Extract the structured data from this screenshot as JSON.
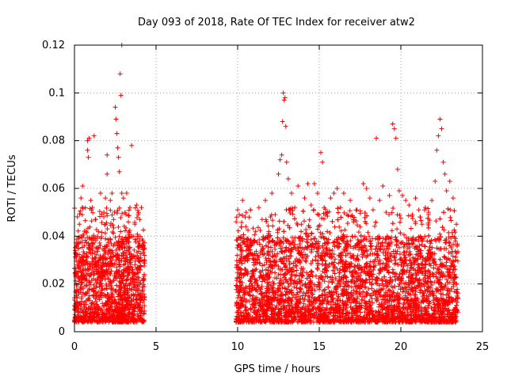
{
  "chart_data": {
    "type": "scatter",
    "title": "Day 093 of 2018, Rate Of TEC Index for receiver atw2",
    "xlabel": "GPS time / hours",
    "ylabel": "ROTI / TECUs",
    "xlim": [
      0,
      25
    ],
    "ylim": [
      0,
      0.12
    ],
    "x_ticks": [
      "0",
      "5",
      "10",
      "15",
      "20",
      "25"
    ],
    "y_ticks": [
      "0",
      "0.02",
      "0.04",
      "0.06",
      "0.08",
      "0.1",
      "0.12"
    ],
    "grid": true,
    "marker": "+",
    "series": [
      {
        "color": "#ff0000",
        "points": [
          [
            0.05,
            0.034
          ],
          [
            0.1,
            0.015
          ],
          [
            0.2,
            0.025
          ],
          [
            0.3,
            0.045
          ],
          [
            0.4,
            0.056
          ],
          [
            0.5,
            0.061
          ],
          [
            0.6,
            0.036
          ],
          [
            0.7,
            0.042
          ],
          [
            0.8,
            0.08
          ],
          [
            0.8,
            0.076
          ],
          [
            0.85,
            0.073
          ],
          [
            0.9,
            0.081
          ],
          [
            1.0,
            0.055
          ],
          [
            1.1,
            0.052
          ],
          [
            1.2,
            0.082
          ],
          [
            1.3,
            0.047
          ],
          [
            1.4,
            0.04
          ],
          [
            1.5,
            0.035
          ],
          [
            1.6,
            0.058
          ],
          [
            1.7,
            0.031
          ],
          [
            1.8,
            0.05
          ],
          [
            1.9,
            0.056
          ],
          [
            2.0,
            0.074
          ],
          [
            2.0,
            0.066
          ],
          [
            2.2,
            0.055
          ],
          [
            2.3,
            0.058
          ],
          [
            2.4,
            0.047
          ],
          [
            2.5,
            0.094
          ],
          [
            2.55,
            0.089
          ],
          [
            2.6,
            0.083
          ],
          [
            2.65,
            0.077
          ],
          [
            2.7,
            0.073
          ],
          [
            2.75,
            0.067
          ],
          [
            2.8,
            0.108
          ],
          [
            2.85,
            0.099
          ],
          [
            2.9,
            0.12
          ],
          [
            2.9,
            0.058
          ],
          [
            3.0,
            0.056
          ],
          [
            3.1,
            0.05
          ],
          [
            3.2,
            0.058
          ],
          [
            3.3,
            0.046
          ],
          [
            3.4,
            0.052
          ],
          [
            3.5,
            0.078
          ],
          [
            3.6,
            0.04
          ],
          [
            3.7,
            0.045
          ],
          [
            3.8,
            0.053
          ],
          [
            3.9,
            0.049
          ],
          [
            4.0,
            0.047
          ],
          [
            4.1,
            0.052
          ],
          [
            4.2,
            0.038
          ],
          [
            10.0,
            0.051
          ],
          [
            10.1,
            0.049
          ],
          [
            10.3,
            0.055
          ],
          [
            10.5,
            0.044
          ],
          [
            10.7,
            0.048
          ],
          [
            10.9,
            0.037
          ],
          [
            11.1,
            0.042
          ],
          [
            11.3,
            0.052
          ],
          [
            11.5,
            0.047
          ],
          [
            11.7,
            0.055
          ],
          [
            11.9,
            0.041
          ],
          [
            12.1,
            0.058
          ],
          [
            12.3,
            0.049
          ],
          [
            12.5,
            0.066
          ],
          [
            12.6,
            0.072
          ],
          [
            12.7,
            0.074
          ],
          [
            12.75,
            0.088
          ],
          [
            12.8,
            0.1
          ],
          [
            12.85,
            0.097
          ],
          [
            12.9,
            0.098
          ],
          [
            12.95,
            0.086
          ],
          [
            13.0,
            0.071
          ],
          [
            13.1,
            0.064
          ],
          [
            13.3,
            0.058
          ],
          [
            13.5,
            0.052
          ],
          [
            13.7,
            0.061
          ],
          [
            13.9,
            0.045
          ],
          [
            14.1,
            0.056
          ],
          [
            14.3,
            0.062
          ],
          [
            14.5,
            0.053
          ],
          [
            14.7,
            0.062
          ],
          [
            14.9,
            0.058
          ],
          [
            15.1,
            0.075
          ],
          [
            15.2,
            0.071
          ],
          [
            15.3,
            0.052
          ],
          [
            15.5,
            0.05
          ],
          [
            15.7,
            0.056
          ],
          [
            15.9,
            0.058
          ],
          [
            16.1,
            0.06
          ],
          [
            16.3,
            0.052
          ],
          [
            16.5,
            0.058
          ],
          [
            16.7,
            0.049
          ],
          [
            16.9,
            0.055
          ],
          [
            17.1,
            0.046
          ],
          [
            17.3,
            0.051
          ],
          [
            17.5,
            0.044
          ],
          [
            17.7,
            0.062
          ],
          [
            17.9,
            0.06
          ],
          [
            18.1,
            0.056
          ],
          [
            18.3,
            0.051
          ],
          [
            18.5,
            0.081
          ],
          [
            18.7,
            0.055
          ],
          [
            18.9,
            0.061
          ],
          [
            19.1,
            0.05
          ],
          [
            19.3,
            0.057
          ],
          [
            19.5,
            0.087
          ],
          [
            19.6,
            0.085
          ],
          [
            19.7,
            0.081
          ],
          [
            19.8,
            0.068
          ],
          [
            19.9,
            0.059
          ],
          [
            20.1,
            0.057
          ],
          [
            20.3,
            0.055
          ],
          [
            20.5,
            0.053
          ],
          [
            20.7,
            0.049
          ],
          [
            20.9,
            0.056
          ],
          [
            21.1,
            0.051
          ],
          [
            21.3,
            0.045
          ],
          [
            21.5,
            0.052
          ],
          [
            21.7,
            0.05
          ],
          [
            21.9,
            0.055
          ],
          [
            22.1,
            0.063
          ],
          [
            22.2,
            0.076
          ],
          [
            22.3,
            0.082
          ],
          [
            22.4,
            0.089
          ],
          [
            22.5,
            0.085
          ],
          [
            22.6,
            0.071
          ],
          [
            22.7,
            0.066
          ],
          [
            22.8,
            0.059
          ],
          [
            23.0,
            0.063
          ],
          [
            23.2,
            0.056
          ],
          [
            23.4,
            0.045
          ]
        ]
      }
    ]
  }
}
